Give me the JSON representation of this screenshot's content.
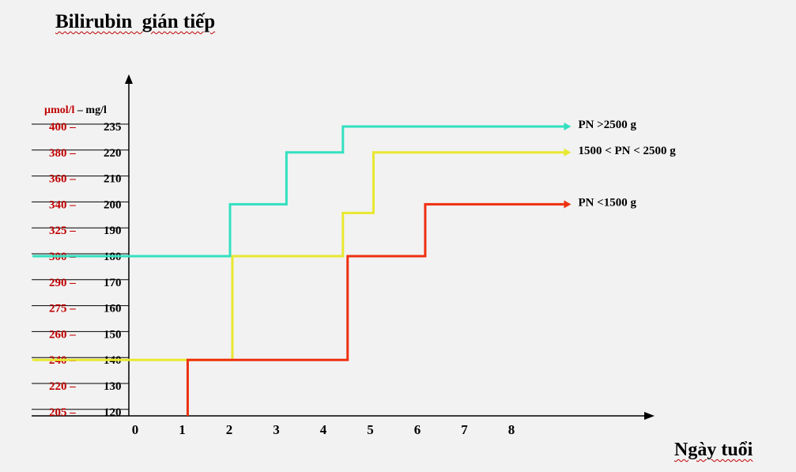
{
  "chart_data": {
    "type": "line",
    "title": "Bilirubin  gián tiếp",
    "xlabel": "Ngày tuổi",
    "ylabel": "µmol/l – mg/l",
    "ylabel_parts": {
      "unit1": "µmol/l",
      "dash": " – ",
      "unit2": "mg/l"
    },
    "x_ticks": [
      0,
      1,
      2,
      3,
      4,
      5,
      6,
      7,
      8
    ],
    "y_ticks": [
      {
        "umol": "400",
        "mg": "235"
      },
      {
        "umol": "380",
        "mg": "220"
      },
      {
        "umol": "360",
        "mg": "210"
      },
      {
        "umol": "340",
        "mg": "200"
      },
      {
        "umol": "325",
        "mg": "190"
      },
      {
        "umol": "300",
        "mg": "180"
      },
      {
        "umol": "290",
        "mg": "170"
      },
      {
        "umol": "275",
        "mg": "160"
      },
      {
        "umol": "260",
        "mg": "150"
      },
      {
        "umol": "240",
        "mg": "140"
      },
      {
        "umol": "220",
        "mg": "130"
      },
      {
        "umol": "205",
        "mg": "120"
      }
    ],
    "grid": false,
    "series": [
      {
        "name": "PN >2500 g",
        "color": "#33e0c0",
        "steps": [
          {
            "x": -2.2,
            "y": 300
          },
          {
            "x": 2.0,
            "y": 300
          },
          {
            "x": 2.0,
            "y": 340
          },
          {
            "x": 3.2,
            "y": 340
          },
          {
            "x": 3.2,
            "y": 380
          },
          {
            "x": 4.4,
            "y": 380
          },
          {
            "x": 4.4,
            "y": 400
          },
          {
            "x": 9.1,
            "y": 400
          }
        ]
      },
      {
        "name": "1500 < PN < 2500 g",
        "color": "#e8e830",
        "steps": [
          {
            "x": -2.2,
            "y": 240
          },
          {
            "x": 2.05,
            "y": 240
          },
          {
            "x": 2.05,
            "y": 300
          },
          {
            "x": 4.4,
            "y": 300
          },
          {
            "x": 4.4,
            "y": 335
          },
          {
            "x": 5.05,
            "y": 335
          },
          {
            "x": 5.05,
            "y": 380
          },
          {
            "x": 9.1,
            "y": 380
          }
        ]
      },
      {
        "name": "PN <1500 g",
        "color": "#ee3010",
        "steps": [
          {
            "x": 1.1,
            "y": 195
          },
          {
            "x": 1.1,
            "y": 240
          },
          {
            "x": 4.5,
            "y": 240
          },
          {
            "x": 4.5,
            "y": 300
          },
          {
            "x": 6.15,
            "y": 300
          },
          {
            "x": 6.15,
            "y": 340
          },
          {
            "x": 9.1,
            "y": 340
          }
        ]
      }
    ]
  },
  "colors": {
    "umol_label": "#c00000",
    "mg_label": "#000000",
    "axis": "#000000",
    "background": "#f2f2f2"
  }
}
